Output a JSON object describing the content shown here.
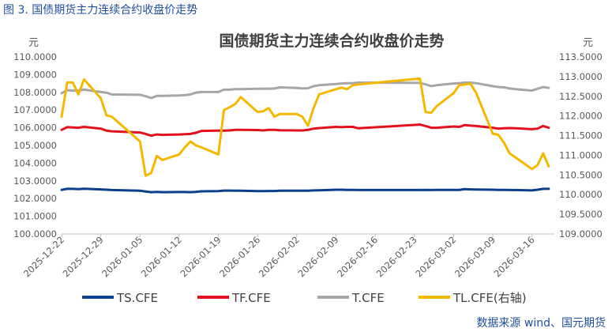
{
  "figure_label": "图 3.  国债期货主力连续合约收盘价走势",
  "source_note": "数据来源 wind、国元期货",
  "colors": {
    "TS": "#0b3e8c",
    "TF": "#e3111b",
    "T": "#a6a6a6",
    "TL": "#f5b800",
    "axis_text": "#595959",
    "title": "#404040"
  },
  "chart_data": {
    "type": "line",
    "title": "国债期货主力连续合约收盘价走势",
    "left_unit": "元",
    "right_unit": "元",
    "ylim": [
      100,
      110
    ],
    "ylim_right": [
      109,
      113.5
    ],
    "y_ticks": [
      "100.0000",
      "101.0000",
      "102.0000",
      "103.0000",
      "104.0000",
      "105.0000",
      "106.0000",
      "107.0000",
      "108.0000",
      "109.0000",
      "110.0000"
    ],
    "y_ticks_right": [
      "109.0000",
      "109.5000",
      "110.0000",
      "110.5000",
      "111.0000",
      "111.5000",
      "112.0000",
      "112.5000",
      "113.0000",
      "113.5000"
    ],
    "x_tick_labels": [
      "2025-12-22",
      "2025-12-29",
      "2026-01-05",
      "2026-01-12",
      "2026-01-19",
      "2026-01-26",
      "2026-02-02",
      "2026-02-09",
      "2026-02-16",
      "2026-02-23",
      "2026-03-02",
      "2026-03-09",
      "2026-03-16"
    ],
    "x": [
      "2025-12-22",
      "2025-12-23",
      "2025-12-24",
      "2025-12-25",
      "2025-12-26",
      "2025-12-29",
      "2025-12-30",
      "2025-12-31",
      "2026-01-05",
      "2026-01-06",
      "2026-01-07",
      "2026-01-08",
      "2026-01-09",
      "2026-01-12",
      "2026-01-13",
      "2026-01-14",
      "2026-01-15",
      "2026-01-16",
      "2026-01-19",
      "2026-01-20",
      "2026-01-21",
      "2026-01-22",
      "2026-01-23",
      "2026-01-26",
      "2026-01-27",
      "2026-01-28",
      "2026-01-29",
      "2026-01-30",
      "2026-02-02",
      "2026-02-03",
      "2026-02-04",
      "2026-02-05",
      "2026-02-06",
      "2026-02-09",
      "2026-02-10",
      "2026-02-11",
      "2026-02-12",
      "2026-02-13",
      "2026-02-24",
      "2026-02-25",
      "2026-02-26",
      "2026-02-27",
      "2026-03-02",
      "2026-03-03",
      "2026-03-04",
      "2026-03-05",
      "2026-03-06",
      "2026-03-09",
      "2026-03-10",
      "2026-03-11",
      "2026-03-12",
      "2026-03-13",
      "2026-03-16",
      "2026-03-17",
      "2026-03-18",
      "2026-03-19"
    ],
    "series": [
      {
        "name": "TS.CFE",
        "axis": "left",
        "values": [
          102.49,
          102.55,
          102.55,
          102.53,
          102.56,
          102.52,
          102.5,
          102.48,
          102.44,
          102.4,
          102.36,
          102.38,
          102.36,
          102.37,
          102.37,
          102.36,
          102.38,
          102.41,
          102.42,
          102.45,
          102.45,
          102.44,
          102.44,
          102.42,
          102.42,
          102.43,
          102.43,
          102.44,
          102.44,
          102.44,
          102.44,
          102.46,
          102.47,
          102.5,
          102.5,
          102.49,
          102.49,
          102.48,
          102.48,
          102.49,
          102.48,
          102.49,
          102.49,
          102.49,
          102.53,
          102.52,
          102.51,
          102.5,
          102.49,
          102.49,
          102.48,
          102.48,
          102.46,
          102.5,
          102.55,
          102.55
        ]
      },
      {
        "name": "TF.CFE",
        "axis": "left",
        "values": [
          105.88,
          106.03,
          106.02,
          106.0,
          106.05,
          105.95,
          105.84,
          105.8,
          105.73,
          105.65,
          105.55,
          105.62,
          105.6,
          105.62,
          105.64,
          105.65,
          105.72,
          105.82,
          105.84,
          105.84,
          105.85,
          105.88,
          105.88,
          105.87,
          105.85,
          105.88,
          105.88,
          105.86,
          105.85,
          105.85,
          105.88,
          105.95,
          105.98,
          106.05,
          106.03,
          106.05,
          106.05,
          105.97,
          106.18,
          106.1,
          106.0,
          106.0,
          106.07,
          106.05,
          106.15,
          106.12,
          106.1,
          106.0,
          105.95,
          105.97,
          105.98,
          105.97,
          105.92,
          105.95,
          106.1,
          106.0
        ]
      },
      {
        "name": "T.CFE",
        "axis": "left",
        "values": [
          107.95,
          108.12,
          108.1,
          108.1,
          108.15,
          108.02,
          107.98,
          107.88,
          107.86,
          107.78,
          107.68,
          107.8,
          107.8,
          107.82,
          107.84,
          107.88,
          107.98,
          108.02,
          108.02,
          108.15,
          108.15,
          108.18,
          108.18,
          108.2,
          108.2,
          108.2,
          108.22,
          108.28,
          108.25,
          108.22,
          108.23,
          108.35,
          108.4,
          108.47,
          108.5,
          108.52,
          108.52,
          108.55,
          108.53,
          108.45,
          108.35,
          108.4,
          108.5,
          108.52,
          108.55,
          108.55,
          108.52,
          108.35,
          108.3,
          108.28,
          108.22,
          108.18,
          108.1,
          108.2,
          108.3,
          108.25
        ]
      },
      {
        "name": "TL.CFE(右轴)",
        "axis": "right",
        "values": [
          111.98,
          112.85,
          112.85,
          112.55,
          112.93,
          112.45,
          112.02,
          111.98,
          111.35,
          110.48,
          110.55,
          110.98,
          110.88,
          111.02,
          111.2,
          111.35,
          111.25,
          111.2,
          111.02,
          112.15,
          112.22,
          112.3,
          112.48,
          112.1,
          112.12,
          112.2,
          111.98,
          112.05,
          112.05,
          111.98,
          111.75,
          112.2,
          112.55,
          112.68,
          112.72,
          112.68,
          112.78,
          112.8,
          112.95,
          112.1,
          112.08,
          112.25,
          112.58,
          112.78,
          112.8,
          112.82,
          112.6,
          111.55,
          111.52,
          111.32,
          111.05,
          110.95,
          110.65,
          110.75,
          111.05,
          110.72
        ]
      }
    ]
  }
}
